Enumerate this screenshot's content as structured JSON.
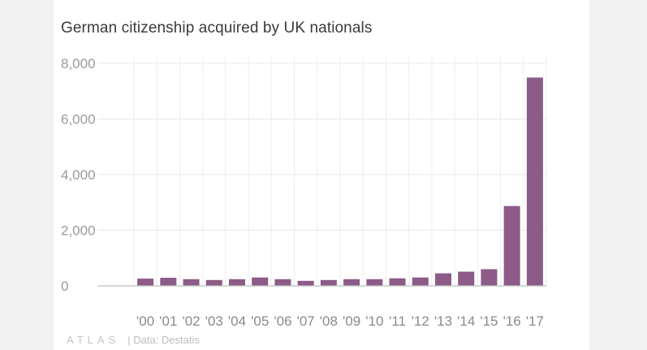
{
  "chart_data": {
    "type": "bar",
    "title": "German citizenship acquired by UK nationals",
    "xlabel": "",
    "ylabel": "",
    "ylim": [
      0,
      8000
    ],
    "yticks": [
      0,
      2000,
      4000,
      6000,
      8000
    ],
    "ytick_labels": [
      "0",
      "2,000",
      "4,000",
      "6,000",
      "8,000"
    ],
    "categories": [
      "'00",
      "'01",
      "'02",
      "'03",
      "'04",
      "'05",
      "'06",
      "'07",
      "'08",
      "'09",
      "'10",
      "'11",
      "'12",
      "'13",
      "'14",
      "'15",
      "'16",
      "'17"
    ],
    "values": [
      260,
      290,
      240,
      210,
      240,
      300,
      240,
      180,
      210,
      240,
      240,
      270,
      300,
      450,
      510,
      600,
      2870,
      7490
    ],
    "bar_color": "#8c5b87",
    "grid": true
  },
  "footer": {
    "logo_text": "ATLAS",
    "source": "| Data: Destatis"
  }
}
